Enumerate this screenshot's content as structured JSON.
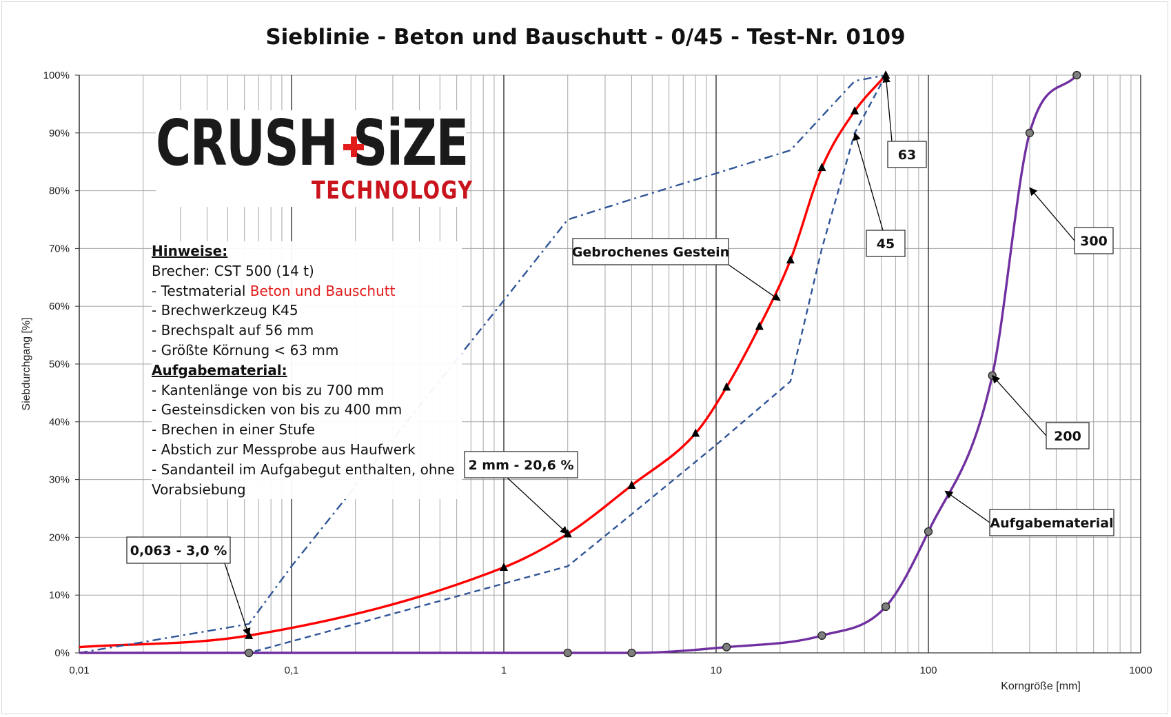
{
  "chart_data": {
    "type": "line",
    "title": "Sieblinie - Beton und Bauschutt - 0/45 - Test-Nr. 0109",
    "xlabel": "Korngröße [mm]",
    "ylabel": "Siebdurchgang [%]",
    "x_scale": "log",
    "xlim": [
      0.01,
      1000
    ],
    "ylim": [
      0,
      100
    ],
    "x_ticks": [
      0.01,
      0.1,
      1,
      10,
      100,
      1000
    ],
    "x_tick_labels": [
      "0,01",
      "0,1",
      "1",
      "10",
      "100",
      "1000"
    ],
    "y_ticks": [
      0,
      10,
      20,
      30,
      40,
      50,
      60,
      70,
      80,
      90,
      100
    ],
    "y_tick_labels": [
      "0%",
      "10%",
      "20%",
      "30%",
      "40%",
      "50%",
      "60%",
      "70%",
      "80%",
      "90%",
      "100%"
    ],
    "grid": true,
    "series": [
      {
        "color": "#ff0000",
        "line_style": "solid",
        "marker": "triangle",
        "x": [
          0.01,
          0.063,
          1,
          2,
          4,
          8,
          11.2,
          16,
          22.4,
          31.5,
          45,
          63
        ],
        "y": [
          1.0,
          3.0,
          14.8,
          20.6,
          29.0,
          38.0,
          46.0,
          56.5,
          68.0,
          84.0,
          93.8,
          100
        ],
        "marker_x": [
          0.063,
          1,
          2,
          4,
          8,
          11.2,
          16,
          22.4,
          31.5,
          45,
          63
        ]
      },
      {
        "color": "#2f5597",
        "line_style": "dashed",
        "marker": "none",
        "x": [
          0.01,
          0.063,
          0.1,
          1,
          2,
          4,
          10,
          22.4,
          31.5,
          45,
          63
        ],
        "y": [
          0,
          0,
          2,
          12,
          15,
          24,
          36,
          47,
          70,
          90,
          100
        ]
      },
      {
        "color": "#2f5597",
        "line_style": "dashdot",
        "marker": "none",
        "x": [
          0.01,
          0.063,
          0.1,
          1,
          2,
          4,
          10,
          22.4,
          45,
          63
        ],
        "y": [
          0,
          5,
          15,
          61,
          75,
          78.5,
          83,
          87,
          99,
          100
        ]
      },
      {
        "color": "#7030a0",
        "line_style": "solid",
        "marker": "circle",
        "x": [
          0.01,
          0.063,
          2,
          4,
          11.2,
          31.5,
          63,
          100,
          200,
          300,
          500
        ],
        "y": [
          0,
          0,
          0,
          0,
          1,
          3,
          8,
          21,
          48,
          90,
          100
        ],
        "marker_x": [
          0.063,
          2,
          4,
          11.2,
          31.5,
          63,
          100,
          200,
          300,
          500
        ]
      }
    ],
    "annotations": [
      {
        "text": "63",
        "target_x": 63,
        "target_y": 100
      },
      {
        "text": "45",
        "target_x": 45,
        "target_y": 90
      },
      {
        "text": "300",
        "target_x": 300,
        "target_y": 80.5
      },
      {
        "text": "200",
        "target_x": 200,
        "target_y": 48
      },
      {
        "text": "Aufgabematerial",
        "target_x": 120,
        "target_y": 28
      },
      {
        "text": "Gebrochenes Gestein",
        "target_x": 20,
        "target_y": 61
      },
      {
        "text": "2 mm - 20,6 %",
        "target_x": 2,
        "target_y": 20.6
      },
      {
        "text": "0,063 - 3,0 %",
        "target_x": 0.063,
        "target_y": 3
      }
    ]
  },
  "logo": {
    "main": "CRUSH SiZE",
    "sub": "TECHNOLOGY"
  },
  "notes": {
    "heading1": "Hinweise:",
    "line1": "Brecher: CST 500 (14 t)",
    "line2_prefix": "- Testmaterial ",
    "line2_highlight": "Beton und Bauschutt",
    "line3": "- Brechwerkzeug K45",
    "line4": "- Brechspalt auf 56 mm",
    "line5": "- Größte Körnung < 63 mm",
    "heading2": "Aufgabematerial:",
    "line6": "- Kantenlänge von bis zu 700 mm",
    "line7": "- Gesteinsdicken von bis zu 400 mm",
    "line8": "- Brechen in einer Stufe",
    "line9": "- Abstich zur Messprobe aus Haufwerk",
    "line10": "- Sandanteil im Aufgabegut enthalten, ohne",
    "line11": "Vorabsiebung"
  }
}
